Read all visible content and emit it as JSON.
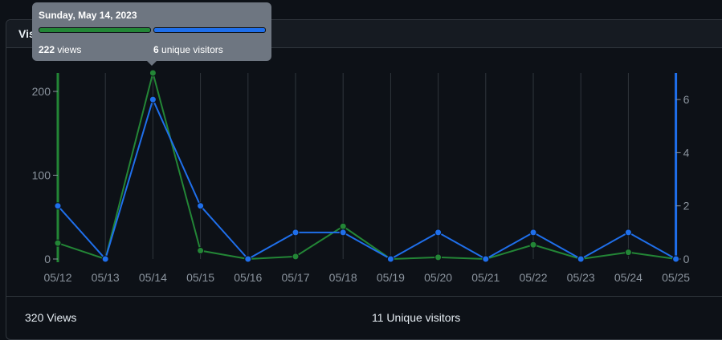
{
  "panel": {
    "title": "Visitors"
  },
  "tooltip": {
    "date": "Sunday, May 14, 2023",
    "views_value": "222",
    "views_label": "views",
    "uniques_value": "6",
    "uniques_label": "unique visitors"
  },
  "summary": {
    "views": "320 Views",
    "uniques": "11 Unique visitors"
  },
  "colors": {
    "views": "#238636",
    "uniques": "#1f6feb",
    "grid": "#30363d",
    "tick": "#8b949e"
  },
  "chart_data": {
    "type": "line",
    "categories": [
      "05/12",
      "05/13",
      "05/14",
      "05/15",
      "05/16",
      "05/17",
      "05/18",
      "05/19",
      "05/20",
      "05/21",
      "05/22",
      "05/23",
      "05/24",
      "05/25"
    ],
    "series": [
      {
        "name": "views",
        "axis": "left",
        "values": [
          19,
          0,
          222,
          10,
          0,
          3,
          39,
          0,
          2,
          0,
          17,
          0,
          8,
          0
        ]
      },
      {
        "name": "unique visitors",
        "axis": "right",
        "values": [
          2,
          0,
          6,
          2,
          0,
          1,
          1,
          0,
          1,
          0,
          1,
          0,
          1,
          0
        ]
      }
    ],
    "y_left": {
      "ticks": [
        "0",
        "100",
        "200"
      ],
      "ylim": [
        0,
        222
      ]
    },
    "y_right": {
      "ticks": [
        "0",
        "2",
        "4",
        "6"
      ],
      "ylim": [
        0,
        7
      ]
    },
    "grid": true,
    "highlighted_category": "05/14"
  }
}
